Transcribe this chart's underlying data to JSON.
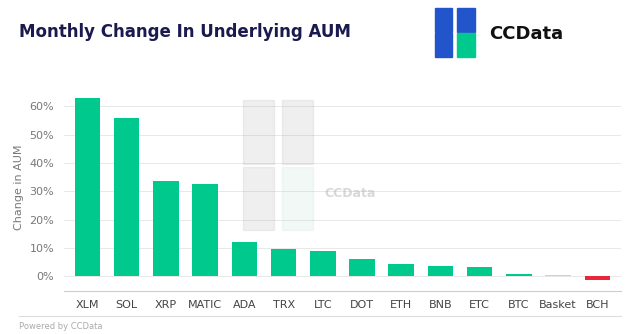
{
  "categories": [
    "XLM",
    "SOL",
    "XRP",
    "MATIC",
    "ADA",
    "TRX",
    "LTC",
    "DOT",
    "ETH",
    "BNB",
    "ETC",
    "BTC",
    "Basket",
    "BCH"
  ],
  "values": [
    63,
    56,
    33.5,
    32.5,
    12,
    9.5,
    9.0,
    6.0,
    4.5,
    3.5,
    3.2,
    1.0,
    0.5,
    -1.2
  ],
  "bar_colors": [
    "#00C98D",
    "#00C98D",
    "#00C98D",
    "#00C98D",
    "#00C98D",
    "#00C98D",
    "#00C98D",
    "#00C98D",
    "#00C98D",
    "#00C98D",
    "#00C98D",
    "#00C98D",
    "#F0C0C8",
    "#E8273A"
  ],
  "title": "Monthly Change In Underlying AUM",
  "ylabel": "Change in AUM",
  "ylim": [
    -5,
    68
  ],
  "yticks": [
    0,
    10,
    20,
    30,
    40,
    50,
    60
  ],
  "background_color": "#FFFFFF",
  "grid_color": "#E8E8E8",
  "title_fontsize": 12,
  "axis_fontsize": 8,
  "watermark_text": "Powered by CCData",
  "ccdata_logo_text": "CCData",
  "logo_color_blue": "#2255CC",
  "logo_color_teal": "#00C98D",
  "title_color": "#1a1a4e"
}
